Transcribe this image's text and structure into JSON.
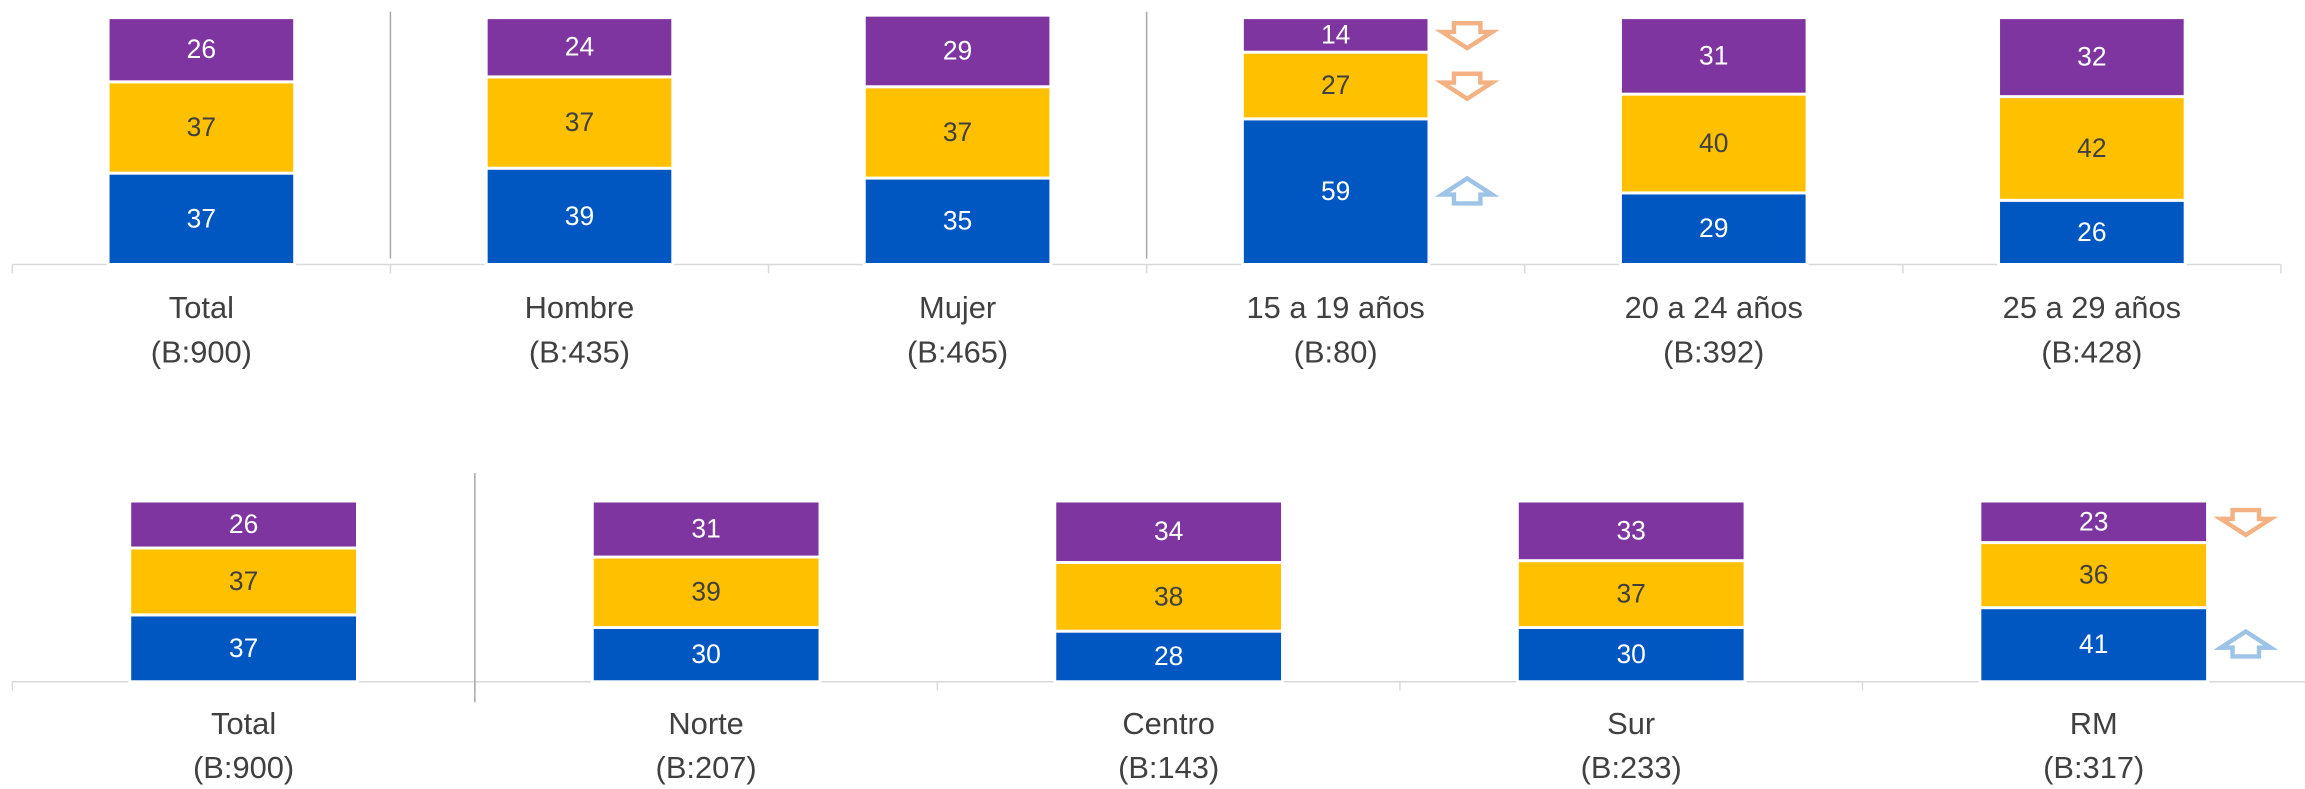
{
  "chart_data": [
    {
      "type": "stacked-bar",
      "categories": [
        "Total",
        "Hombre",
        "Mujer",
        "15 a 19 años",
        "20 a 24 años",
        "25 a 29 años"
      ],
      "sublabels": [
        "(B:900)",
        "(B:435)",
        "(B:465)",
        "(B:80)",
        "(B:392)",
        "(B:428)"
      ],
      "ylim": [
        0,
        100
      ],
      "series": [
        {
          "color": "#0057c1",
          "values": [
            37,
            39,
            35,
            59,
            29,
            26
          ],
          "arrows": [
            null,
            null,
            null,
            "up",
            null,
            null
          ]
        },
        {
          "color": "#ffc000",
          "values": [
            37,
            37,
            37,
            27,
            40,
            42
          ],
          "arrows": [
            null,
            null,
            null,
            "down",
            null,
            null
          ]
        },
        {
          "color": "#7f35a0",
          "values": [
            26,
            24,
            29,
            14,
            31,
            32
          ],
          "arrows": [
            null,
            null,
            null,
            "down",
            null,
            null
          ]
        }
      ]
    },
    {
      "type": "stacked-bar",
      "categories": [
        "Total",
        "Norte",
        "Centro",
        "Sur",
        "RM"
      ],
      "sublabels": [
        "(B:900)",
        "(B:207)",
        "(B:143)",
        "(B:233)",
        "(B:317)"
      ],
      "ylim": [
        0,
        100
      ],
      "series": [
        {
          "color": "#0057c1",
          "values": [
            37,
            30,
            28,
            30,
            41
          ],
          "arrows": [
            null,
            null,
            null,
            null,
            "up"
          ]
        },
        {
          "color": "#ffc000",
          "values": [
            37,
            39,
            38,
            37,
            36
          ],
          "arrows": [
            null,
            null,
            null,
            null,
            null
          ]
        },
        {
          "color": "#7f35a0",
          "values": [
            26,
            31,
            34,
            33,
            23
          ],
          "arrows": [
            null,
            null,
            null,
            null,
            "down"
          ]
        }
      ]
    }
  ]
}
